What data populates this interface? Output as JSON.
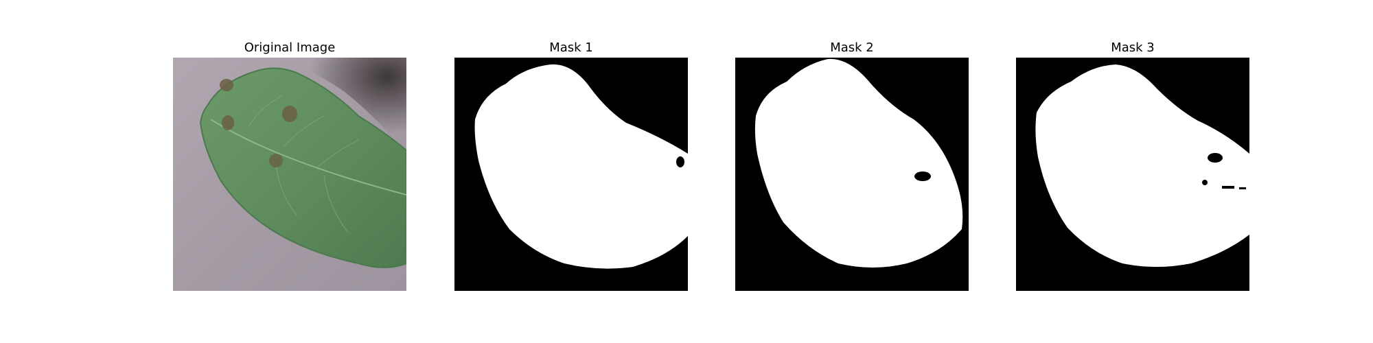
{
  "panels": [
    {
      "title": "Original Image",
      "kind": "photo"
    },
    {
      "title": "Mask 1",
      "kind": "mask"
    },
    {
      "title": "Mask 2",
      "kind": "mask"
    },
    {
      "title": "Mask 3",
      "kind": "mask"
    }
  ],
  "colors": {
    "background": "#ffffff",
    "mask_background": "#000000",
    "mask_foreground": "#ffffff",
    "photo_background": "#a79ea8",
    "leaf_green": "#5f8b5f",
    "leaf_dark": "#456f46",
    "spot_brown": "#6a5e45"
  }
}
